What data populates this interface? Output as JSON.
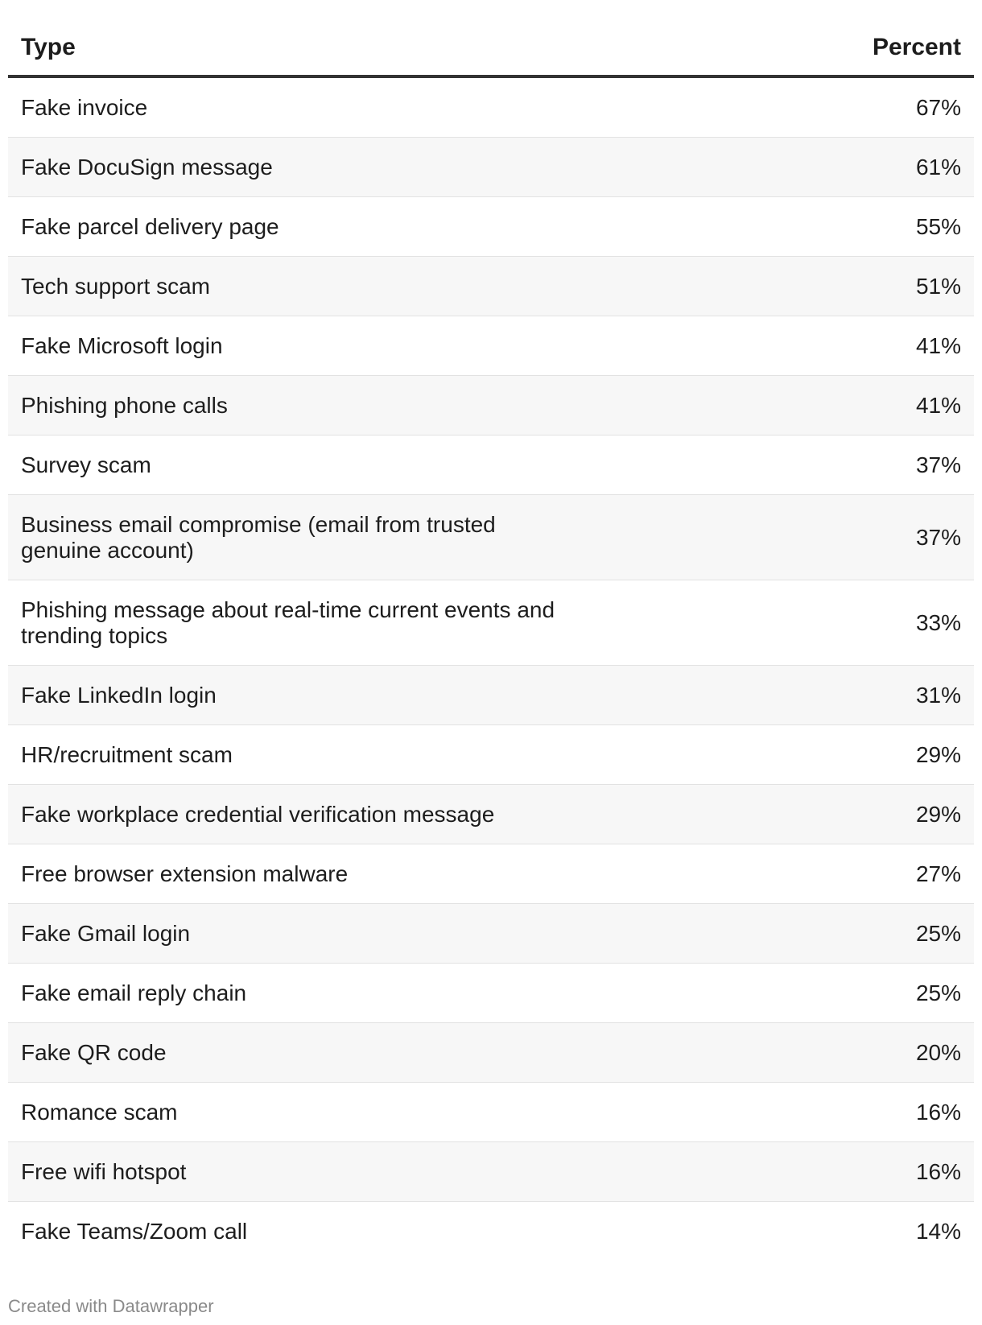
{
  "chart_data": {
    "type": "table",
    "columns": [
      "Type",
      "Percent"
    ],
    "rows": [
      {
        "type": "Fake invoice",
        "percent": "67%"
      },
      {
        "type": "Fake DocuSign message",
        "percent": "61%"
      },
      {
        "type": "Fake parcel delivery page",
        "percent": "55%"
      },
      {
        "type": "Tech support scam",
        "percent": "51%"
      },
      {
        "type": "Fake Microsoft login",
        "percent": "41%"
      },
      {
        "type": "Phishing phone calls",
        "percent": "41%"
      },
      {
        "type": "Survey scam",
        "percent": "37%"
      },
      {
        "type": "Business email compromise (email from trusted genuine account)",
        "percent": "37%"
      },
      {
        "type": "Phishing message about real-time current events and trending topics",
        "percent": "33%"
      },
      {
        "type": "Fake LinkedIn login",
        "percent": "31%"
      },
      {
        "type": "HR/recruitment scam",
        "percent": "29%"
      },
      {
        "type": "Fake workplace credential verification message",
        "percent": "29%"
      },
      {
        "type": "Free browser extension malware",
        "percent": "27%"
      },
      {
        "type": "Fake Gmail login",
        "percent": "25%"
      },
      {
        "type": "Fake email reply chain",
        "percent": "25%"
      },
      {
        "type": "Fake QR code",
        "percent": "20%"
      },
      {
        "type": "Romance scam",
        "percent": "16%"
      },
      {
        "type": "Free wifi hotspot",
        "percent": "16%"
      },
      {
        "type": "Fake Teams/Zoom call",
        "percent": "14%"
      }
    ]
  },
  "footer": {
    "credit": "Created with Datawrapper"
  }
}
